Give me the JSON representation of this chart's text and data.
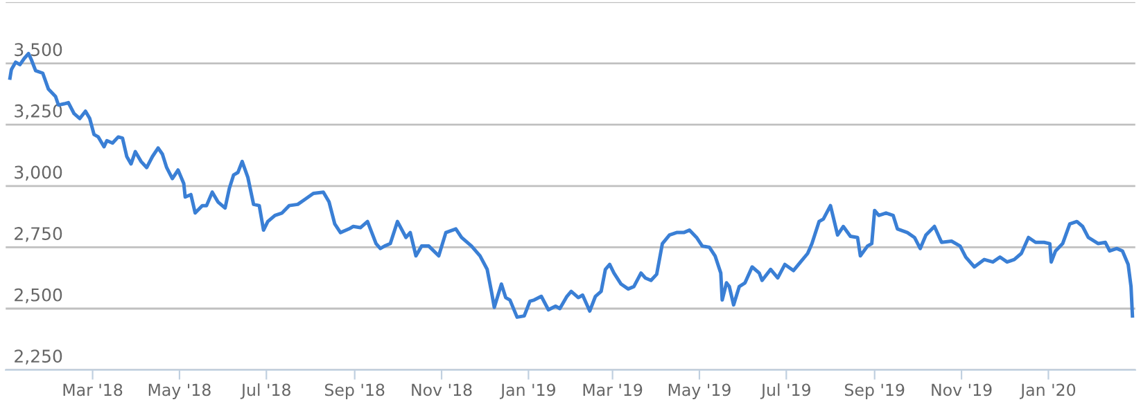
{
  "chart_data": {
    "type": "line",
    "x": [
      "2018-01-02",
      "2018-01-03",
      "2018-01-06",
      "2018-01-09",
      "2018-01-12",
      "2018-01-15",
      "2018-01-17",
      "2018-01-20",
      "2018-01-25",
      "2018-01-29",
      "2018-02-03",
      "2018-02-05",
      "2018-02-09",
      "2018-02-12",
      "2018-02-16",
      "2018-02-20",
      "2018-02-24",
      "2018-02-27",
      "2018-03-02",
      "2018-03-05",
      "2018-03-09",
      "2018-03-11",
      "2018-03-15",
      "2018-03-19",
      "2018-03-22",
      "2018-03-25",
      "2018-03-28",
      "2018-03-31",
      "2018-04-04",
      "2018-04-08",
      "2018-04-12",
      "2018-04-16",
      "2018-04-19",
      "2018-04-22",
      "2018-04-26",
      "2018-04-30",
      "2018-05-04",
      "2018-05-05",
      "2018-05-09",
      "2018-05-12",
      "2018-05-17",
      "2018-05-20",
      "2018-05-24",
      "2018-05-28",
      "2018-06-02",
      "2018-06-05",
      "2018-06-08",
      "2018-06-11",
      "2018-06-14",
      "2018-06-18",
      "2018-06-22",
      "2018-06-26",
      "2018-06-29",
      "2018-07-02",
      "2018-07-07",
      "2018-07-12",
      "2018-07-17",
      "2018-07-23",
      "2018-07-28",
      "2018-08-03",
      "2018-08-10",
      "2018-08-14",
      "2018-08-18",
      "2018-08-22",
      "2018-08-28",
      "2018-08-31",
      "2018-09-05",
      "2018-09-10",
      "2018-09-13",
      "2018-09-16",
      "2018-09-19",
      "2018-09-22",
      "2018-09-26",
      "2018-10-01",
      "2018-10-07",
      "2018-10-10",
      "2018-10-14",
      "2018-10-18",
      "2018-10-23",
      "2018-10-30",
      "2018-11-04",
      "2018-11-11",
      "2018-11-15",
      "2018-11-22",
      "2018-11-28",
      "2018-12-03",
      "2018-12-06",
      "2018-12-08",
      "2018-12-13",
      "2018-12-16",
      "2018-12-19",
      "2018-12-24",
      "2018-12-29",
      "2019-01-02",
      "2019-01-05",
      "2019-01-10",
      "2019-01-15",
      "2019-01-20",
      "2019-01-23",
      "2019-01-28",
      "2019-01-31",
      "2019-02-05",
      "2019-02-08",
      "2019-02-13",
      "2019-02-17",
      "2019-02-21",
      "2019-02-24",
      "2019-02-27",
      "2019-03-02",
      "2019-03-07",
      "2019-03-12",
      "2019-03-16",
      "2019-03-21",
      "2019-03-24",
      "2019-03-28",
      "2019-04-01",
      "2019-04-05",
      "2019-04-10",
      "2019-04-15",
      "2019-04-20",
      "2019-04-24",
      "2019-04-29",
      "2019-05-03",
      "2019-05-08",
      "2019-05-12",
      "2019-05-16",
      "2019-05-17",
      "2019-05-20",
      "2019-05-22",
      "2019-05-25",
      "2019-05-29",
      "2019-06-02",
      "2019-06-07",
      "2019-06-12",
      "2019-06-14",
      "2019-06-20",
      "2019-06-25",
      "2019-06-30",
      "2019-07-06",
      "2019-07-11",
      "2019-07-16",
      "2019-07-19",
      "2019-07-24",
      "2019-07-27",
      "2019-08-01",
      "2019-08-06",
      "2019-08-10",
      "2019-08-15",
      "2019-08-20",
      "2019-08-22",
      "2019-08-27",
      "2019-08-30",
      "2019-09-01",
      "2019-09-04",
      "2019-09-09",
      "2019-09-14",
      "2019-09-17",
      "2019-09-24",
      "2019-09-29",
      "2019-10-03",
      "2019-10-07",
      "2019-10-13",
      "2019-10-18",
      "2019-10-25",
      "2019-10-31",
      "2019-11-04",
      "2019-11-10",
      "2019-11-17",
      "2019-11-23",
      "2019-11-28",
      "2019-12-03",
      "2019-12-08",
      "2019-12-13",
      "2019-12-18",
      "2019-12-23",
      "2019-12-29",
      "2020-01-02",
      "2020-01-03",
      "2020-01-06",
      "2020-01-11",
      "2020-01-16",
      "2020-01-21",
      "2020-01-25",
      "2020-01-29",
      "2020-02-05",
      "2020-02-10",
      "2020-02-13",
      "2020-02-18",
      "2020-02-22",
      "2020-02-26",
      "2020-02-28",
      "2020-02-29"
    ],
    "series": [
      {
        "color": "#3a7fd5",
        "values": [
          3440,
          3475,
          3505,
          3495,
          3520,
          3540,
          3515,
          3470,
          3460,
          3395,
          3365,
          3330,
          3335,
          3340,
          3295,
          3275,
          3305,
          3275,
          3210,
          3200,
          3160,
          3185,
          3175,
          3200,
          3195,
          3120,
          3090,
          3140,
          3100,
          3075,
          3120,
          3155,
          3130,
          3075,
          3030,
          3065,
          3010,
          2955,
          2965,
          2890,
          2920,
          2920,
          2975,
          2935,
          2910,
          2990,
          3045,
          3055,
          3100,
          3035,
          2925,
          2920,
          2820,
          2855,
          2880,
          2890,
          2920,
          2925,
          2945,
          2970,
          2975,
          2935,
          2845,
          2810,
          2825,
          2835,
          2830,
          2855,
          2810,
          2765,
          2745,
          2755,
          2765,
          2855,
          2790,
          2810,
          2715,
          2755,
          2755,
          2715,
          2810,
          2825,
          2790,
          2755,
          2715,
          2660,
          2570,
          2505,
          2600,
          2545,
          2535,
          2465,
          2470,
          2530,
          2535,
          2550,
          2495,
          2510,
          2500,
          2550,
          2570,
          2545,
          2555,
          2490,
          2550,
          2570,
          2660,
          2680,
          2645,
          2600,
          2580,
          2590,
          2645,
          2625,
          2615,
          2640,
          2765,
          2800,
          2810,
          2810,
          2820,
          2790,
          2755,
          2750,
          2715,
          2645,
          2535,
          2605,
          2590,
          2515,
          2590,
          2605,
          2670,
          2645,
          2615,
          2660,
          2625,
          2680,
          2655,
          2690,
          2725,
          2765,
          2855,
          2865,
          2920,
          2800,
          2835,
          2795,
          2790,
          2715,
          2755,
          2765,
          2900,
          2880,
          2890,
          2880,
          2825,
          2810,
          2790,
          2745,
          2800,
          2835,
          2770,
          2775,
          2755,
          2710,
          2670,
          2700,
          2690,
          2710,
          2690,
          2700,
          2725,
          2790,
          2770,
          2770,
          2765,
          2690,
          2735,
          2765,
          2845,
          2855,
          2835,
          2790,
          2765,
          2770,
          2735,
          2745,
          2735,
          2680,
          2590,
          2470
        ]
      }
    ],
    "xlim": [
      "2017-12-30",
      "2020-03-02"
    ],
    "xticks": [
      {
        "value": "2018-03-01",
        "label": "Mar '18"
      },
      {
        "value": "2018-05-01",
        "label": "May '18"
      },
      {
        "value": "2018-07-01",
        "label": "Jul '18"
      },
      {
        "value": "2018-09-01",
        "label": "Sep '18"
      },
      {
        "value": "2018-11-01",
        "label": "Nov '18"
      },
      {
        "value": "2019-01-01",
        "label": "Jan '19"
      },
      {
        "value": "2019-03-01",
        "label": "Mar '19"
      },
      {
        "value": "2019-05-01",
        "label": "May '19"
      },
      {
        "value": "2019-07-01",
        "label": "Jul '19"
      },
      {
        "value": "2019-09-01",
        "label": "Sep '19"
      },
      {
        "value": "2019-11-01",
        "label": "Nov '19"
      },
      {
        "value": "2020-01-01",
        "label": "Jan '20"
      }
    ],
    "ylim": [
      2250,
      3750
    ],
    "yticks": [
      {
        "value": 2250,
        "label": "2,250"
      },
      {
        "value": 2500,
        "label": "2,500"
      },
      {
        "value": 2750,
        "label": "2,750"
      },
      {
        "value": 3000,
        "label": "3,000"
      },
      {
        "value": 3250,
        "label": "3,250"
      },
      {
        "value": 3500,
        "label": "3,500"
      },
      {
        "value": 3750,
        "label": null
      }
    ],
    "grid": "y",
    "legend": false,
    "marker": "none",
    "line_style": "solid"
  }
}
